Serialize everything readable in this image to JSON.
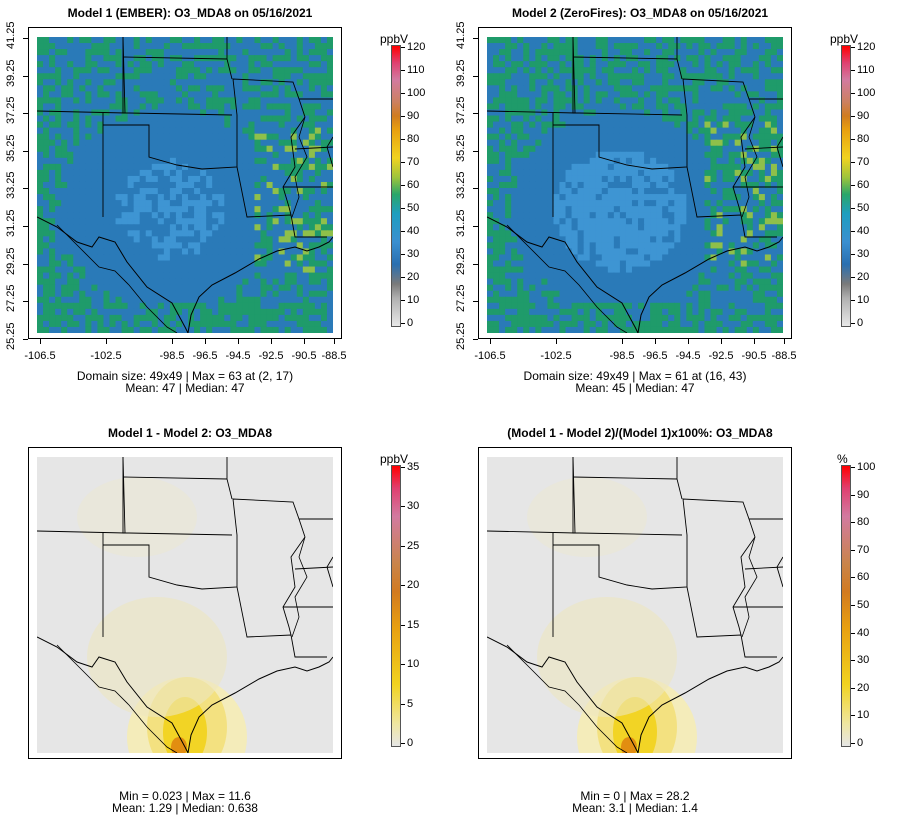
{
  "panels": [
    {
      "id": "p1",
      "title": "Model 1 (EMBER): O3_MDA8 on 05/16/2021",
      "unit": "ppbV",
      "colorbar_ticks": [
        "120",
        "110",
        "100",
        "90",
        "80",
        "70",
        "60",
        "50",
        "40",
        "30",
        "20",
        "10",
        "0"
      ],
      "stats_line1": "Domain size: 49x49 | Max = 63 at (2, 17)",
      "stats_line2": "Mean: 47 |  Median: 47",
      "show_axes": true,
      "fill": "blue-green"
    },
    {
      "id": "p2",
      "title": "Model 2 (ZeroFires): O3_MDA8 on 05/16/2021",
      "unit": "ppbV",
      "colorbar_ticks": [
        "120",
        "110",
        "100",
        "90",
        "80",
        "70",
        "60",
        "50",
        "40",
        "30",
        "20",
        "10",
        "0"
      ],
      "stats_line1": "Domain size: 49x49 | Max = 61 at (16, 43)",
      "stats_line2": "Mean: 45 |  Median: 47",
      "show_axes": true,
      "fill": "blue-green-low"
    },
    {
      "id": "p3",
      "title": "Model 1 - Model 2: O3_MDA8",
      "unit": "ppbV",
      "colorbar_ticks": [
        "35",
        "30",
        "25",
        "20",
        "15",
        "10",
        "5",
        "0"
      ],
      "stats_line1": "Min = 0.023 | Max = 11.6",
      "stats_line2": "Mean: 1.29 |  Median: 0.638",
      "show_axes": false,
      "fill": "diff"
    },
    {
      "id": "p4",
      "title": "(Model 1 - Model 2)/(Model 1)x100%: O3_MDA8",
      "unit": "%",
      "colorbar_ticks": [
        "100",
        "90",
        "80",
        "70",
        "60",
        "50",
        "40",
        "30",
        "20",
        "10",
        "0"
      ],
      "stats_line1": "Min = 0 | Max = 28.2",
      "stats_line2": "Mean: 3.1 |  Median: 1.4",
      "show_axes": false,
      "fill": "diff"
    }
  ],
  "y_ticks": [
    "41.25",
    "39.25",
    "37.25",
    "35.25",
    "33.25",
    "31.25",
    "29.25",
    "27.25",
    "25.25"
  ],
  "x_ticks": [
    "-106.5",
    "-102.5",
    "-98.5",
    "-96.5",
    "-94.5",
    "-92.5",
    "-90.5",
    "-88.5"
  ],
  "colors": {
    "grid_blue": "#2a7ab8",
    "grid_light_blue": "#3e95d3",
    "grid_green": "#1f9b6a",
    "grid_lime": "#8fc04a",
    "diff_gray": "#e6e6e6",
    "diff_yellow": "#f1d320",
    "diff_orange": "#e08a10"
  }
}
